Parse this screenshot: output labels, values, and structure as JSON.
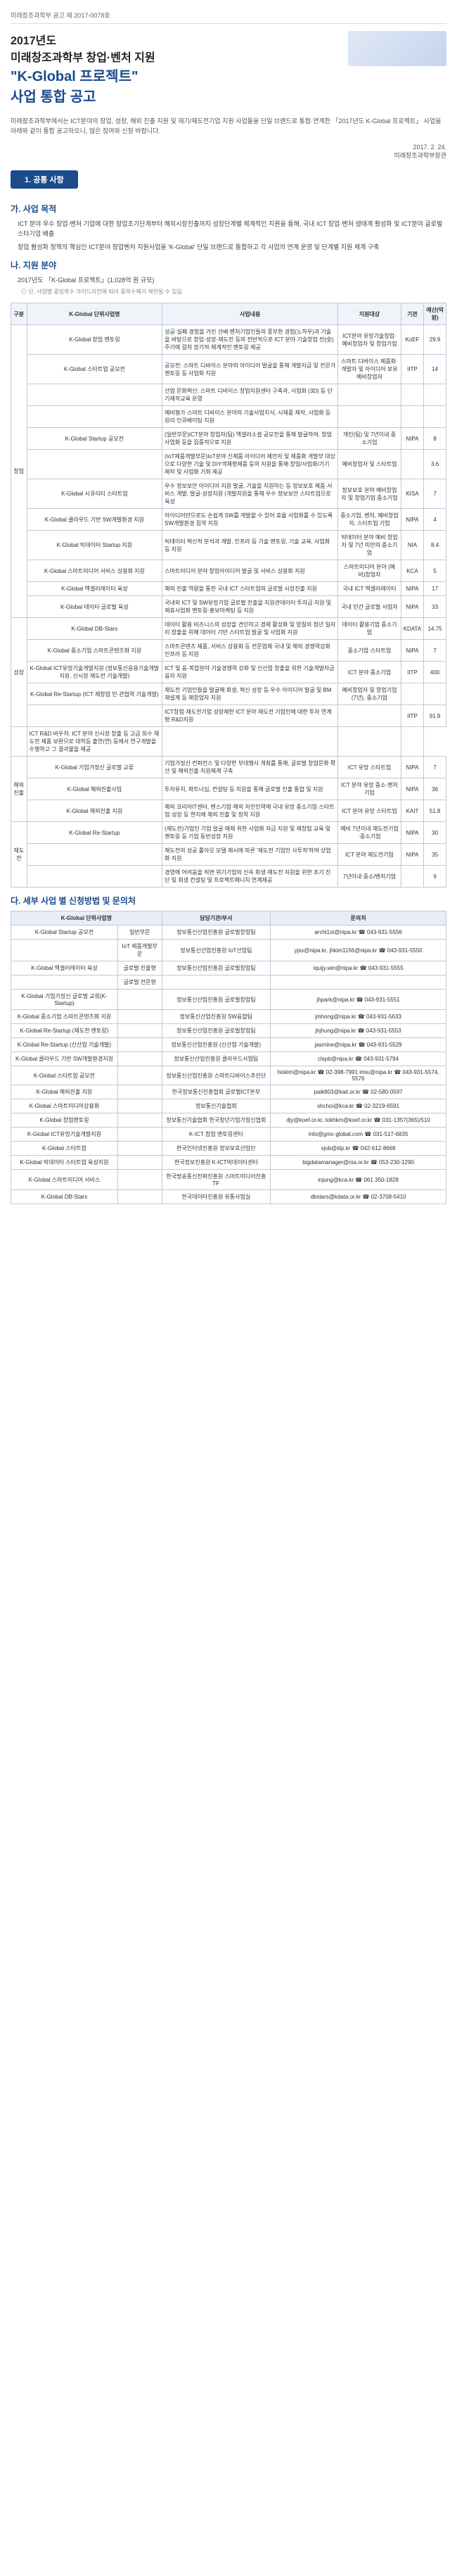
{
  "doc_number": "미래창조과학부 공고 제 2017-0078호",
  "title": {
    "line1": "2017년도",
    "line2": "미래창조과학부 창업·벤처 지원",
    "highlight": "\"K-Global 프로젝트\"",
    "line3": "사업 통합 공고"
  },
  "intro": "미래창조과학부에서는 ICT분야의 창업, 성장, 해외 진출 지원 및 재기/재도전기업 지원 사업들을 단일 브랜드로 통합·연계한 「2017년도 K-Global 프로젝트」 사업을 아래와 같이 통합 공고하오니, 많은 참여와 신청 바랍니다.",
  "date": "2017. 2. 24.",
  "signer": "미래창조과학부장관",
  "section1_title": "1. 공통 사항",
  "subsection_a": "가. 사업 목적",
  "bullets_a": [
    "ICT 분야 우수 창업·벤처 기업에 대한 창업초기단계부터 해외시장진출까지 성장단계별 체계적인 지원을 통해, 국내 ICT 창업·벤처 생태계 활성화 및 ICT분야 글로벌 스타기업 배출",
    "창업 활성화 정책의 핵심인 ICT분야 창업벤처 지원사업을 'K-Global' 단일 브랜드로 통합하고 각 사업의 연계 운영 및 단계별 지원 체계 구축"
  ],
  "subsection_b": "나. 지원 분야",
  "project_header": "2017년도 「K-Global 프로젝트」(1,028억 원 규모)",
  "project_note": "◎ 단, 사업별 증빙복수 가이드라인에 따라 중복수혜가 제한될 수 있음",
  "table1_headers": [
    "구분",
    "K-Global 단위사업명",
    "사업내용",
    "지원대상",
    "기관",
    "예산(억원)"
  ],
  "table1_rows": [
    {
      "cat": "창업",
      "rowspan": 12,
      "name": "K-Global 창업 멘토링",
      "content": "성공·실패 경험을 가진 선배 벤처기업인들의 풍부한 경험(노하우)과 기술을 바탕으로 창업·성장·재도전 등의 전반적으로 ICT 분야 기술창업 전(全)주기에 걸쳐 장기적·체계적인 멘토링 제공",
      "target": "ICT분야 유망기술창업·예비창업자 및 창업기업",
      "agency": "KoEF",
      "budget": "29.9"
    },
    {
      "name": "K-Global 스타트업 공모전",
      "content": "공모전: 스마트 디바이스 분야의 아이디어 발굴을 통해 개발자금 및 전문가 멘토링 등 사업화 지원",
      "target": "스마트 디바이스 제품화·개발자 및 아이디어 보유 예비창업자",
      "agency": "IITP",
      "budget": "14"
    },
    {
      "name": "",
      "content": "산업 문화혁신: 스마트 디바이스 창업지원센터 구축과, 사업화 (3D) 등 단기제작교육 운영",
      "target": "",
      "agency": "",
      "budget": ""
    },
    {
      "name": "",
      "content": "예비평가·스마트 디바이스 분야의 기술사업지식, 시제품 제작, 사업화 등 원리 인큐베이팅 지원",
      "target": "",
      "agency": "",
      "budget": ""
    },
    {
      "name": "K-Global Startup 공모전",
      "content": "(일반부문)ICT분야 창업자(팀) 액셀러소셜 공모전을 통해 발굴하여, 창업 사업화 등을 집중적으로 지원",
      "target": "개인(팀) 및 7년이내 중소기업",
      "agency": "NIPA",
      "budget": "8"
    },
    {
      "name": "",
      "content": "(IoT제품개발부문)IoT분야 신제품 아이디어 제안자 및 제품화 개발부 대상으로 다양한 기술 및 DIY객체형제품 등의 지원을 통해 창업/사업화/기기 제작 및 사업화 기회 제공",
      "target": "예비창업자 및 스타트업",
      "agency": "",
      "budget": "3.6"
    },
    {
      "name": "K-Global 시큐리티 스타트업",
      "content": "우수 정보보안 아이디어 지원 발굴, 기술을 지원하는 등 정보보호 제품·서비스 개발, 발굴·성장지원 (개발지원을 통해 우수 정보보안 스타트업으로 육성",
      "target": "정보보호 분야 예비창업자 및 창업기업 중소기업",
      "agency": "KISA",
      "budget": "7"
    },
    {
      "name": "K-Global 클라우드 기반 SW개발환경 지원",
      "content": "아이디어만으로도 손쉽게 SW를 개발할 수 있어 효율 사업화를 수 있도록 SW개발환경 집약 지원",
      "target": "중소기업, 벤처, 예비창업자, 스타트업 기업",
      "agency": "NIPA",
      "budget": "4"
    },
    {
      "name": "K-Global 빅데이터 Startup 지원",
      "content": "빅데이터 혁신적 분석과 개발, 인프라 등 기술 멘토링, 기술 교육, 사업화 등 지원",
      "target": "빅데이터 분야 예비 창업자 및 7년 미만의 중소기업",
      "agency": "NIA",
      "budget": "8.4"
    },
    {
      "name": "K-Global 스마트미디어 서비스 상용화 지원",
      "content": "스마트미디어 분야 창업아이디어 발굴 및 서비스 상용화 지원",
      "target": "스마트미디어 분야 (예비)창업자",
      "agency": "KCA",
      "budget": "5"
    },
    {
      "name": "K-Global 액셀러레이터 육성",
      "content": "해외 진출 역량을 통한 국내 ICT 스타트업의 글로벌 시장진출 지원",
      "target": "국내 ICT 액셀러레이터",
      "agency": "NIPA",
      "budget": "17"
    },
    {
      "name": "K-Global 데이터 글로벌 육성",
      "content": "국내외 ICT 및 SW유망기업 글로벌 진출을 지원관데이터 투자금 지원 및 제휴사업화 멘토링·홍보마케팅 등 지원",
      "target": "국내 민간 글로벌 사업자",
      "agency": "NIPA",
      "budget": "33"
    },
    {
      "cat": "성장",
      "rowspan": 5,
      "name": "K-Global DB-Stars",
      "content": "데이터 활용 비즈니스의 성장을 견인하고 경제 활성화 및 양질의 청년 일자리 창출을 위해 데이터 기반 스타트업 발굴 및 사업화 지원",
      "target": "데이터 활용기업 중소기업",
      "agency": "KDATA",
      "budget": "14.75"
    },
    {
      "name": "K-Global 중소기업 스마트콘텐츠화 지원",
      "content": "스마트콘텐츠 제품, 서비스 상용화 등 전문업체 국내 및 해외 경쟁력강화 인프라 등 지원",
      "target": "중소기업·스타트업",
      "agency": "NIPA",
      "budget": "7"
    },
    {
      "name": "K-Global ICT유망기술개발지원 (정보통신응용기술개발지원, 신시장 재도전 기술개발)",
      "content": "ICT 및 융·복합분야 기술경쟁력 강화 및 신산업 창출을 위한 기술개발자금 융자 지원",
      "target": "ICT 분야 중소기업",
      "agency": "IITP",
      "budget": "400"
    },
    {
      "name": "K-Global Re-Startup (ICT 재창업 민·관협력 기술개발)",
      "content": "재도전 기업인들을 발굴해 회생, 혁신 성장 등 우수 아이디어 발굴 및 BM 재설계 등 재창업자 지원",
      "target": "예비창업자 및 창업기업(7년), 중소기업",
      "agency": "",
      "budget": ""
    },
    {
      "name": "",
      "content": "ICT창업·재도전기업 성장제한 ICT 분야 재도전 기업인에 대한 투자 연계형 R&D지원",
      "target": "",
      "agency": "IITP",
      "budget": "91.9"
    },
    {
      "name": "",
      "content": "ICT R&D 바우처: ICT 분야 신시장 창출 등 고급 희수 재도전 제품 보완으로 대학등 출연(연) 등에서 연구개발을 수행하고 그 결과물을 제공",
      "target": "",
      "agency": "",
      "budget": ""
    },
    {
      "cat": "해외진출",
      "rowspan": 3,
      "name": "K-Global 기업가정신 글로벌 교류",
      "content": "기업가정신 컨퍼런스 및 다양한 부대행사 개최를 통해, 글로벌 창업문화 확산 및 해외진출 지원체계 구축",
      "target": "ICT 유망 스타트업",
      "agency": "NIPA",
      "budget": "7"
    },
    {
      "name": "K-Global 해외진출사업",
      "content": "투자유치, 파트너십, 컨설팅 등 지원을 통해 글로벌 진출 통합 및 지원",
      "target": "ICT 분야 유망 중소·벤처기업",
      "agency": "NIPA",
      "budget": "36"
    },
    {
      "name": "K-Global 해외진출 지원",
      "content": "해외 코리아IT센터, 벤스기업·해외 자진인력에 국내 유망 중소기업·스타트업·성장 등 현지에 해외 진출 및 정착 지원",
      "target": "ICT 분야 유망 스타트업",
      "agency": "KAIT",
      "budget": "51.8"
    },
    {
      "cat": "재도전",
      "rowspan": 3,
      "name": "K-Global Re-Startup",
      "content": "(재도전)기업인 기업 얼굴 매체 위한 사업화 자금 지원 및 재창업 교육 및 멘토링 등 기업 동반성장 지원",
      "target": "예비 7년이내 재도전기업·중소기업",
      "agency": "NIPA",
      "budget": "30"
    },
    {
      "name": "",
      "content": "재도전의 성공 롤아웃 모델 제시에 따른 '제도전 기업인 사투적'하여 상업화 지원",
      "target": "ICT 분야 재도전기업",
      "agency": "NIPA",
      "budget": "35"
    },
    {
      "name": "",
      "content": "경영에 어려움을 직면 위기기업의 신속 회생·재도전 지원을 위한 조기 진단 및 회생 컨설팅 및 프로젝트매니지 연계제공",
      "target": "7년이내 중소/벤처기업",
      "agency": "",
      "budget": "9"
    }
  ],
  "subsection_c": "다. 세부 사업 별 신청방법 및 문의처",
  "table2_headers": [
    "K-Global 단위사업명",
    "",
    "담당기관/부서",
    "문의처"
  ],
  "table2_rows": [
    {
      "name": "K-Global Startup 공모전",
      "sub": "일반부문",
      "dept": "정보통신산업진흥원 글로벌창업팀",
      "contact": "archi1st@nipa.kr ☎ 043-931-5556"
    },
    {
      "name": "",
      "sub": "IoT 제품개발부문",
      "dept": "정보통신산업진흥원 IoT산업팀",
      "contact": "yjss@nipa.kr, jhkim1156@nipa.kr ☎ 043-931-5550"
    },
    {
      "name": "K-Global 액셀러레이터 육성",
      "sub": "글로벌 진출형",
      "dept": "정보통신산업진흥원 글로벌창업팀",
      "contact": "iquijy.win@nipa.kr ☎ 043-931-5555"
    },
    {
      "name": "",
      "sub": "글로벌 전문형",
      "dept": "",
      "contact": ""
    },
    {
      "name": "K-Global 기업가정신 글로벌 교류(K-Startup)",
      "sub": "",
      "dept": "정보통신산업진흥원 글로벌창업팀",
      "contact": "jhpark@nipa.kr ☎ 043-931-5551"
    },
    {
      "name": "K-Global 중소기업 스마트콘텐츠화 지원",
      "sub": "",
      "dept": "정보통신산업진흥원 SW융합팀",
      "contact": "jmhong@nipa.kr ☎ 043-931-5633"
    },
    {
      "name": "K-Global Re-Startup (재도전 멘토링)",
      "sub": "",
      "dept": "정보통신산업진흥원 글로벌창업팀",
      "contact": "jhjhung@nipa.kr ☎ 043-931-5553"
    },
    {
      "name": "K-Global Re-Startup (신산업 기술개발)",
      "sub": "",
      "dept": "정보통신산업진흥원 (신산업 기술개발)",
      "contact": "jasmine@nipa.kr ☎ 043-931-5529"
    },
    {
      "name": "K-Global 클라우드 기반 SW개발환경지원",
      "sub": "",
      "dept": "정보통신산업진흥원 클라우드사업팀",
      "contact": "clspb@nipa.kr ☎ 043-931-5794"
    },
    {
      "name": "K-Global 스타트업 공모전",
      "sub": "",
      "dept": "정보통신산업진흥원 스마트디바이스추진단",
      "contact": "hiskim@nipa.kr ☎ 02-398-7991 imiu@nipa.kr ☎ 043-931-5574, 5576"
    },
    {
      "name": "K-Global 해외진출 지원",
      "sub": "",
      "dept": "한국정보통신진흥협회 글로벌ICT본부",
      "contact": "paik803@kait.or.kr ☎ 02-580-0597"
    },
    {
      "name": "K-Global 스마트미디어상용화",
      "sub": "",
      "dept": "정보통신기술협회",
      "contact": "shchoi@kca.kr ☎ 02-3219-6591"
    },
    {
      "name": "K-Global 창업멘토링",
      "sub": "",
      "dept": "정보통신기술협회 한국청년기업가정신협회",
      "contact": "djy@koef.or.kr, tokhkm@koef.or.kr ☎ 031-1357(365)/510"
    },
    {
      "name": "K-Global ICT유망기술개발지원",
      "sub": "",
      "dept": "K-ICT 창업 멘토링센터",
      "contact": "info@gmc-global.com ☎ 031-517-6835"
    },
    {
      "name": "K-Global 스타트업",
      "sub": "",
      "dept": "한국인터넷진흥원 정보보호산업단",
      "contact": "sjob@iitp.kr ☎ 042-612-8668"
    },
    {
      "name": "K-Global 빅데이터 스타트업 육성지원",
      "sub": "",
      "dept": "한국정보진흥원 K-ICT빅데이터센터",
      "contact": "bigdatamanager@nia.or.kr ☎ 053-230-1290"
    },
    {
      "name": "K-Global 스마트미디어 서비스",
      "sub": "",
      "dept": "한국방송통신전파진흥원 스마트미디어진흥 TF",
      "contact": "injung@kca.kr ☎ 061 350-1828"
    },
    {
      "name": "K-Global DB-Stars",
      "sub": "",
      "dept": "한국데이터진흥원 유통사업실",
      "contact": "dbstars@kdata.or.kr ☎ 02-3708-5410"
    }
  ]
}
